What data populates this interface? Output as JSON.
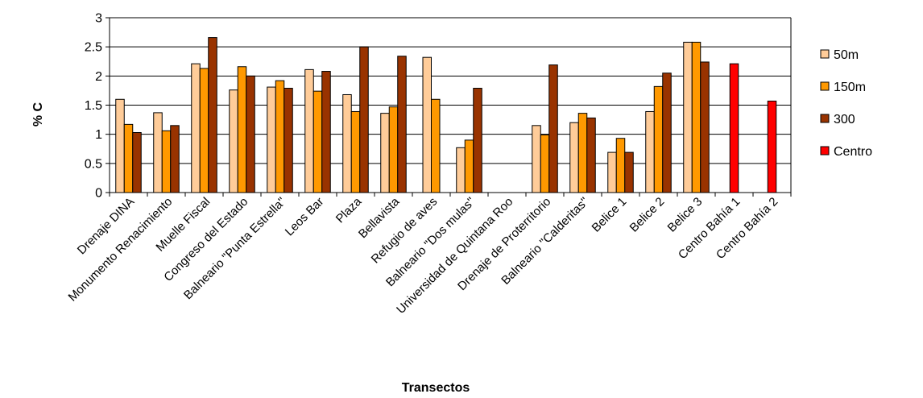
{
  "chart_data": {
    "type": "bar",
    "title": "",
    "xlabel": "Transectos",
    "ylabel": "% C",
    "ylim": [
      0,
      3
    ],
    "yticks": [
      "0",
      "0.5",
      "1",
      "1.5",
      "2",
      "2.5",
      "3"
    ],
    "grid": true,
    "legend_position": "right",
    "categories": [
      "Drenaje DINA",
      "Monumento Renacimiento",
      "Muelle Fiscal",
      "Congreso del Estado",
      "Balneario \"Punta Estrella\"",
      "Leos Bar",
      "Plaza",
      "Bellavista",
      "Refugio de aves",
      "Balneario \"Dos mulas\"",
      "Universidad de Quintana Roo",
      "Drenaje de Proterritorio",
      "Balneario \"Calderitas\"",
      "Belice 1",
      "Belice 2",
      "Belice 3",
      "Centro Bahía 1",
      "Centro Bahía 2"
    ],
    "series": [
      {
        "name": "50m",
        "color": "#FFCC99",
        "values": [
          1.6,
          1.37,
          2.21,
          1.76,
          1.81,
          2.11,
          1.68,
          1.36,
          2.32,
          0.77,
          null,
          1.15,
          1.2,
          0.69,
          1.39,
          2.58,
          null,
          null
        ]
      },
      {
        "name": "150m",
        "color": "#FF9900",
        "values": [
          1.17,
          1.06,
          2.13,
          2.16,
          1.92,
          1.74,
          1.39,
          1.47,
          1.6,
          0.9,
          null,
          0.99,
          1.36,
          0.93,
          1.82,
          2.58,
          null,
          null
        ]
      },
      {
        "name": "300",
        "color": "#993300",
        "values": [
          1.03,
          1.15,
          2.66,
          2.0,
          1.79,
          2.08,
          2.5,
          2.34,
          null,
          1.79,
          null,
          2.19,
          1.28,
          0.69,
          2.05,
          2.24,
          null,
          null
        ]
      },
      {
        "name": "Centro",
        "color": "#FF0000",
        "values": [
          null,
          null,
          null,
          null,
          null,
          null,
          null,
          null,
          null,
          null,
          null,
          null,
          null,
          null,
          null,
          null,
          2.21,
          1.57
        ]
      }
    ]
  }
}
